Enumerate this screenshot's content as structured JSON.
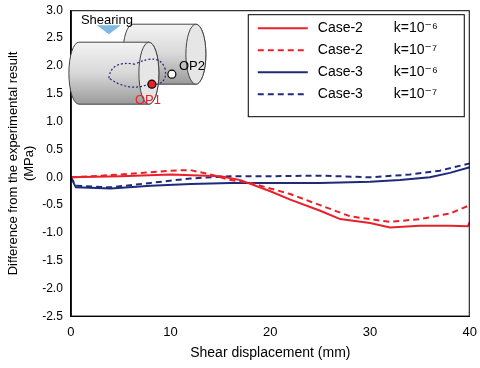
{
  "chart_data": {
    "type": "line",
    "x_label": "Shear displacement (mm)",
    "y_label": "Difference from the experimental result (MPa)",
    "xlim": [
      0,
      40
    ],
    "xticks": [
      0,
      10,
      20,
      30,
      40
    ],
    "ylim": [
      -2.5,
      3.0
    ],
    "yticks": [
      {
        "value": 3.0,
        "label": "3.0"
      },
      {
        "value": 2.5,
        "label": "2.5"
      },
      {
        "value": 2.0,
        "label": "2.0"
      },
      {
        "value": 1.5,
        "label": "1.5"
      },
      {
        "value": 1.0,
        "label": "1.0"
      },
      {
        "value": 0.5,
        "label": "0.5"
      },
      {
        "value": 0.0,
        "label": "0.0"
      },
      {
        "value": -0.5,
        "label": "-0.5"
      },
      {
        "value": -1.0,
        "label": "-1.0"
      },
      {
        "value": -1.5,
        "label": "-1.5"
      },
      {
        "value": -2.0,
        "label": "-2.0"
      },
      {
        "value": -2.5,
        "label": "-2.5"
      }
    ],
    "grid": false,
    "legend": "upper right",
    "annotations": [
      "Shearing",
      "OP1",
      "OP2"
    ],
    "series": [
      {
        "name": "Case-2 k=10⁻⁶",
        "color": "#e8202a",
        "line_style": "solid",
        "x": [
          0,
          5,
          10,
          15,
          17,
          20,
          22,
          25,
          27,
          30,
          32,
          35,
          38,
          39.8,
          40
        ],
        "values": [
          0,
          0.02,
          0.05,
          0.02,
          -0.05,
          -0.25,
          -0.4,
          -0.6,
          -0.75,
          -0.82,
          -0.9,
          -0.87,
          -0.87,
          -0.88,
          -0.8
        ]
      },
      {
        "name": "Case-2 k=10⁻⁷",
        "color": "#e8202a",
        "line_style": "dashed",
        "x": [
          0,
          5,
          10,
          12,
          14,
          16,
          18,
          20,
          22,
          25,
          28,
          30,
          32,
          35,
          38,
          40
        ],
        "values": [
          0,
          0.05,
          0.12,
          0.13,
          0.05,
          -0.05,
          -0.1,
          -0.2,
          -0.3,
          -0.5,
          -0.7,
          -0.75,
          -0.8,
          -0.75,
          -0.65,
          -0.5
        ]
      },
      {
        "name": "Case-3 k=10⁻⁶",
        "color": "#1f2b7a",
        "line_style": "solid",
        "x": [
          0,
          0.5,
          4,
          8,
          12,
          16,
          20,
          25,
          30,
          33,
          36,
          38,
          40
        ],
        "values": [
          0,
          -0.18,
          -0.2,
          -0.15,
          -0.12,
          -0.1,
          -0.1,
          -0.1,
          -0.08,
          -0.05,
          0.0,
          0.08,
          0.18
        ]
      },
      {
        "name": "Case-3 k=10⁻⁷",
        "color": "#1f2b7a",
        "line_style": "dashed",
        "x": [
          0,
          0.5,
          4,
          8,
          12,
          16,
          20,
          25,
          30,
          34,
          37,
          40
        ],
        "values": [
          0,
          -0.15,
          -0.18,
          -0.1,
          -0.02,
          0.02,
          0.02,
          0.03,
          0.0,
          0.05,
          0.12,
          0.25
        ]
      }
    ]
  }
}
